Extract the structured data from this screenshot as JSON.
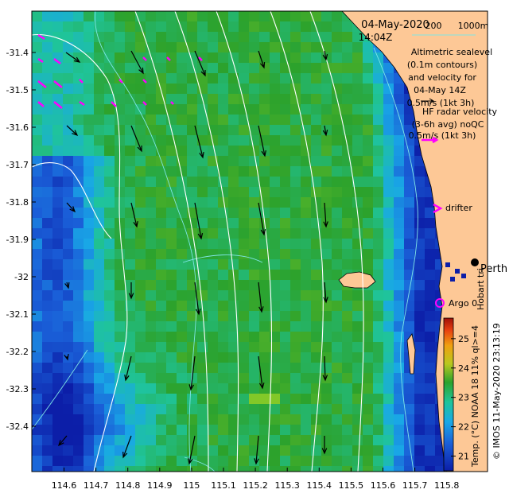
{
  "header": {
    "date": "04-May-2020",
    "time": "14:04Z"
  },
  "bathy_legend": {
    "d1": "200",
    "d2": "1000m"
  },
  "altimetry_legend": [
    "Altimetric sealevel",
    "(0.1m contours)",
    "and velocity for",
    "04-May 14Z",
    "0.5m/s (1kt 3h)"
  ],
  "hfradar_legend": [
    "HF radar velocity",
    "(3-6h avg) noQC",
    "0.5m/s (1kt 3h)"
  ],
  "drifter_label": "drifter",
  "place_label": "Perth",
  "institution_label": "Hobart tri",
  "argo_label": "Argo 0",
  "colorbar": {
    "label": "Temp. (°C) NOAA 18 11% ql>=4",
    "ticks": [
      "25",
      "24",
      "23",
      "22",
      "21"
    ],
    "tick_values": [
      25,
      24,
      23,
      22,
      21
    ]
  },
  "credit": "© IMOS 11-May-2020 23:13:19",
  "axes": {
    "x_ticks": [
      "114.6",
      "114.7",
      "114.8",
      "114.9",
      "115",
      "115.1",
      "115.2",
      "115.3",
      "115.4",
      "115.5",
      "115.6",
      "115.7",
      "115.8"
    ],
    "x_values": [
      114.6,
      114.7,
      114.8,
      114.9,
      115.0,
      115.1,
      115.2,
      115.3,
      115.4,
      115.5,
      115.6,
      115.7,
      115.8
    ],
    "y_ticks": [
      "-31.4",
      "-31.5",
      "-31.6",
      "-31.7",
      "-31.8",
      "-31.9",
      "-32",
      "-32.1",
      "-32.2",
      "-32.3",
      "-32.4"
    ],
    "y_values": [
      -31.4,
      -31.5,
      -31.6,
      -31.7,
      -31.8,
      -31.9,
      -32.0,
      -32.1,
      -32.2,
      -32.3,
      -32.4
    ]
  },
  "colors": {
    "land": "#fdc896",
    "sst_high": "#2ca22c",
    "sst_low": "#0c1ea8",
    "hf_radar_arrow": "#ff00ff",
    "altimetry_arrow": "#000000"
  }
}
